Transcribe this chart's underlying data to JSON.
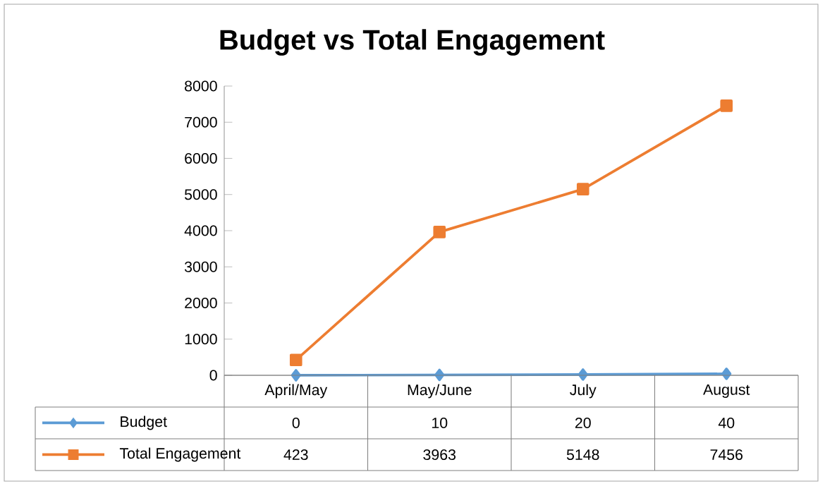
{
  "chart_data": {
    "type": "line",
    "title": "Budget vs Total Engagement",
    "categories": [
      "April/May",
      "May/June",
      "July",
      "August"
    ],
    "series": [
      {
        "name": "Budget",
        "color": "#5b9bd5",
        "marker": "diamond",
        "values": [
          0,
          10,
          20,
          40
        ]
      },
      {
        "name": "Total Engagement",
        "color": "#ed7d31",
        "marker": "square",
        "values": [
          423,
          3963,
          5148,
          7456
        ]
      }
    ],
    "ylim": [
      0,
      8000
    ],
    "yticks": [
      0,
      1000,
      2000,
      3000,
      4000,
      5000,
      6000,
      7000,
      8000
    ],
    "grid": false,
    "legend": "bottom",
    "data_labels": true
  }
}
